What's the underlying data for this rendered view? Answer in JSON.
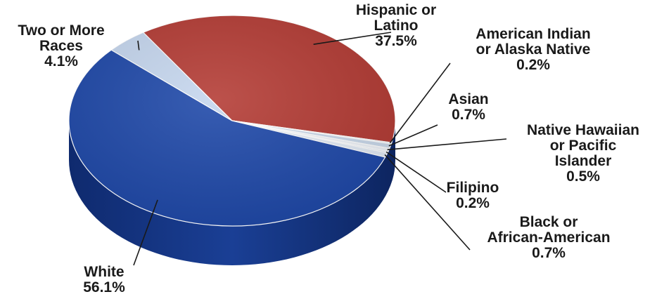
{
  "chart_data": {
    "type": "pie",
    "title": "",
    "legend": "none",
    "slices": [
      {
        "name_lines": [
          "Hispanic or",
          "Latino"
        ],
        "value_label": "37.5%",
        "value": 37.5,
        "color": "#b33a33"
      },
      {
        "name_lines": [
          "American Indian",
          "or Alaska Native"
        ],
        "value_label": "0.2%",
        "value": 0.2,
        "color": "#e9eef6"
      },
      {
        "name_lines": [
          "Asian"
        ],
        "value_label": "0.7%",
        "value": 0.7,
        "color": "#c9d8ea"
      },
      {
        "name_lines": [
          "Native Hawaiian",
          "or Pacific",
          "Islander"
        ],
        "value_label": "0.5%",
        "value": 0.5,
        "color": "#eef2f8"
      },
      {
        "name_lines": [
          "Filipino"
        ],
        "value_label": "0.2%",
        "value": 0.2,
        "color": "#d6e2ef"
      },
      {
        "name_lines": [
          "Black or",
          "African-American"
        ],
        "value_label": "0.7%",
        "value": 0.7,
        "color": "#e3ebf5"
      },
      {
        "name_lines": [
          "White"
        ],
        "value_label": "56.1%",
        "value": 56.1,
        "color": "#1d47a8"
      },
      {
        "name_lines": [
          "Two or More",
          "Races"
        ],
        "value_label": "4.1%",
        "value": 4.1,
        "color": "#c5d6ee"
      }
    ]
  }
}
